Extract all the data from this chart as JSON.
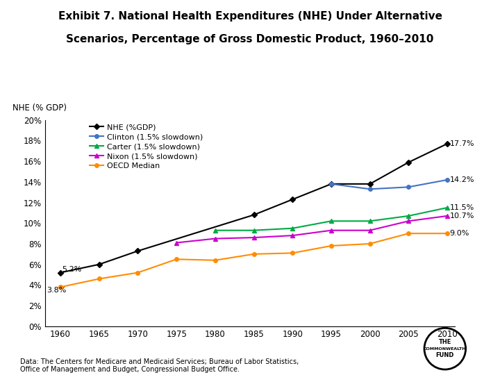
{
  "title_line1": "Exhibit 7. National Health Expenditures (NHE) Under Alternative",
  "title_line2": "Scenarios, Percentage of Gross Domestic Product, 1960–2010",
  "ylabel": "NHE (% GDP)",
  "years": [
    1960,
    1965,
    1970,
    1975,
    1980,
    1985,
    1990,
    1995,
    2000,
    2005,
    2010
  ],
  "nhe": [
    5.2,
    6.0,
    7.3,
    null,
    null,
    10.8,
    12.3,
    13.8,
    13.8,
    15.9,
    17.7
  ],
  "clinton": [
    null,
    null,
    null,
    null,
    null,
    null,
    null,
    13.8,
    13.3,
    13.5,
    14.2
  ],
  "carter": [
    null,
    null,
    null,
    null,
    9.3,
    9.3,
    9.5,
    10.2,
    10.2,
    10.7,
    11.5
  ],
  "nixon": [
    null,
    null,
    null,
    8.1,
    8.5,
    8.6,
    8.8,
    9.3,
    9.3,
    10.2,
    10.7
  ],
  "oecd": [
    3.8,
    4.6,
    5.2,
    6.5,
    6.4,
    7.0,
    7.1,
    7.8,
    8.0,
    9.0,
    9.0
  ],
  "nhe_color": "#000000",
  "clinton_color": "#4472C4",
  "carter_color": "#00AA44",
  "nixon_color": "#CC00CC",
  "oecd_color": "#FF8C00",
  "ylim": [
    0,
    20
  ],
  "yticks": [
    0,
    2,
    4,
    6,
    8,
    10,
    12,
    14,
    16,
    18,
    20
  ],
  "ytick_labels": [
    "0%",
    "2%",
    "4%",
    "6%",
    "8%",
    "10%",
    "12%",
    "14%",
    "16%",
    "18%",
    "20%"
  ],
  "footnote": "Data: The Centers for Medicare and Medicaid Services; Bureau of Labor Statistics,\nOffice of Management and Budget, Congressional Budget Office.",
  "label_nhe": "NHE (%GDP)",
  "label_clinton": "Clinton (1.5% slowdown)",
  "label_carter": "Carter (1.5% slowdown)",
  "label_nixon": "Nixon (1.5% slowdown)",
  "label_oecd": "OECD Median",
  "end_label_nhe": "17.7%",
  "end_label_clinton": "14.2%",
  "end_label_carter": "11.5%",
  "end_label_nixon": "10.7%",
  "end_label_oecd": "9.0%",
  "start_label_nhe": "5.2%",
  "start_label_oecd": "3.8%",
  "background_color": "#FFFFFF"
}
